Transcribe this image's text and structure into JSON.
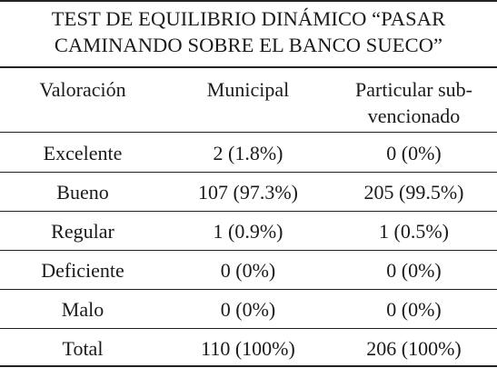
{
  "title_line1": "TEST DE EQUILIBRIO DINÁMICO “PASAR",
  "title_line2": "CAMINANDO SOBRE EL BANCO SUECO”",
  "headers": {
    "col1": "Valoración",
    "col2": "Municipal",
    "col3_line1": "Particular sub-",
    "col3_line2": "vencionado"
  },
  "rows": [
    {
      "label": "Excelente",
      "municipal": "2 (1.8%)",
      "particular": "0 (0%)"
    },
    {
      "label": "Bueno",
      "municipal": "107 (97.3%)",
      "particular": "205 (99.5%)"
    },
    {
      "label": "Regular",
      "municipal": "1 (0.9%)",
      "particular": "1 (0.5%)"
    },
    {
      "label": "Deficiente",
      "municipal": "0 (0%)",
      "particular": "0 (0%)"
    },
    {
      "label": "Malo",
      "municipal": "0 (0%)",
      "particular": "0 (0%)"
    },
    {
      "label": "Total",
      "municipal": "110 (100%)",
      "particular": "206 (100%)"
    }
  ]
}
